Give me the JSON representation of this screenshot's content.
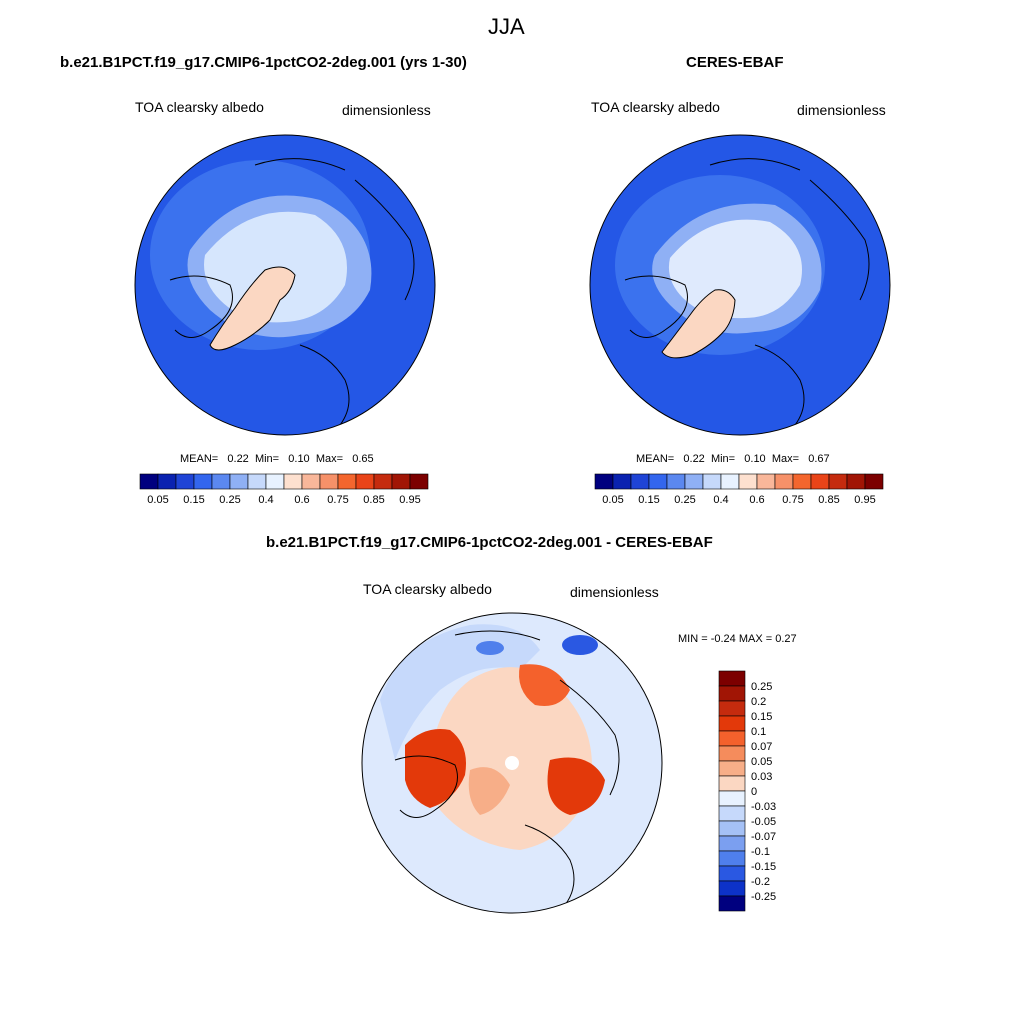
{
  "page": {
    "season": "JJA"
  },
  "colors": {
    "land_outline": "#000000",
    "map_border": "#000000",
    "colorbar_abs": [
      "#00007f",
      "#0a22b0",
      "#1f44d6",
      "#3366ee",
      "#5b88f0",
      "#8fb0f5",
      "#c6d9fb",
      "#e8f2ff",
      "#fde0cf",
      "#f9b79a",
      "#f69169",
      "#f4662e",
      "#e94418",
      "#c52b0e",
      "#a11505",
      "#7c0000"
    ],
    "colorbar_diff": [
      "#7c0000",
      "#a11505",
      "#c52b0e",
      "#e3390a",
      "#f4612c",
      "#f58c5c",
      "#f7ae88",
      "#fbd7c2",
      "#e8f2ff",
      "#c6d9fb",
      "#a5c1f6",
      "#7b9ff0",
      "#4f7fec",
      "#2a58e2",
      "#0d32c8",
      "#00007f"
    ]
  },
  "panels": [
    {
      "case_title": "b.e21.B1PCT.f19_g17.CMIP6-1pctCO2-2deg.001 (yrs 1-30)",
      "variable": "TOA clearsky albedo",
      "units": "dimensionless",
      "stats": {
        "mean_label": "MEAN=",
        "mean": "0.22",
        "min_label": "Min=",
        "min": "0.10",
        "max_label": "Max=",
        "max": "0.65"
      },
      "colorbar_ticks": [
        "0.05",
        "0.15",
        "0.25",
        "0.4",
        "0.6",
        "0.75",
        "0.85",
        "0.95"
      ]
    },
    {
      "case_title": "CERES-EBAF",
      "variable": "TOA clearsky albedo",
      "units": "dimensionless",
      "stats": {
        "mean_label": "MEAN=",
        "mean": "0.22",
        "min_label": "Min=",
        "min": "0.10",
        "max_label": "Max=",
        "max": "0.67"
      },
      "colorbar_ticks": [
        "0.05",
        "0.15",
        "0.25",
        "0.4",
        "0.6",
        "0.75",
        "0.85",
        "0.95"
      ]
    }
  ],
  "difference": {
    "case_title": "b.e21.B1PCT.f19_g17.CMIP6-1pctCO2-2deg.001 - CERES-EBAF",
    "variable": "TOA clearsky albedo",
    "units": "dimensionless",
    "range_text": "MIN =  -0.24 MAX =   0.27",
    "colorbar_labels": [
      "0.25",
      "0.2",
      "0.15",
      "0.1",
      "0.07",
      "0.05",
      "0.03",
      "0",
      "-0.03",
      "-0.05",
      "-0.07",
      "-0.1",
      "-0.15",
      "-0.2",
      "-0.25"
    ]
  }
}
